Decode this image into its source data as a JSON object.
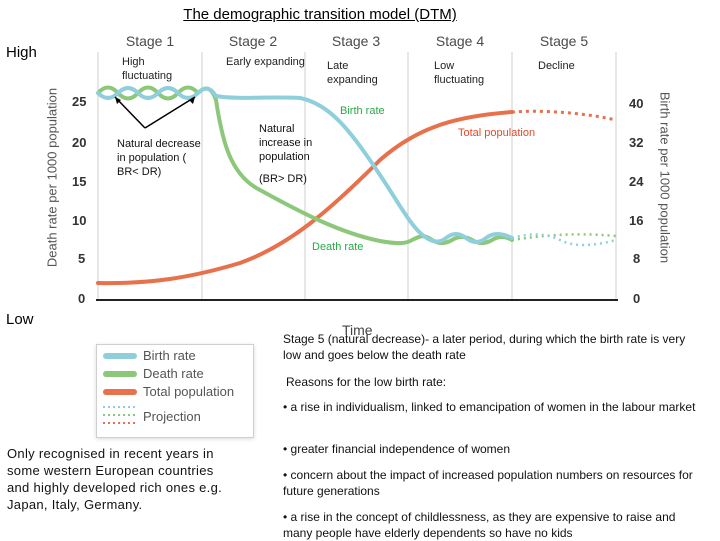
{
  "title": "The demographic transition model (DTM)",
  "side_labels": {
    "high": "High",
    "low": "Low"
  },
  "stages": [
    {
      "name": "Stage 1",
      "desc": "High fluctuating"
    },
    {
      "name": "Stage 2",
      "desc": "Early expanding"
    },
    {
      "name": "Stage 3",
      "desc": "Late expanding"
    },
    {
      "name": "Stage 4",
      "desc": "Low fluctuating"
    },
    {
      "name": "Stage 5",
      "desc": "Decline"
    }
  ],
  "annotations": {
    "natural_decrease": "Natural decrease in population ( BR< DR)",
    "natural_increase": "Natural increase in population",
    "br_dr": "(BR> DR)",
    "birth_rate": "Birth rate",
    "total_population": "Total population",
    "death_rate": "Death rate"
  },
  "axes": {
    "left_title": "Death rate per 1000 population",
    "right_title": "Birth rate per 1000 population",
    "x_title": "Time",
    "left_ticks": [
      "25",
      "20",
      "15",
      "10",
      "5",
      "0"
    ],
    "right_ticks": [
      "40",
      "32",
      "24",
      "16",
      "8",
      "0"
    ]
  },
  "legend": {
    "items": [
      "Birth rate",
      "Death rate",
      "Total population",
      "Projection"
    ],
    "colors": {
      "birth": "#8fcfdc",
      "death": "#8cc77a",
      "population": "#e8704a"
    }
  },
  "stage5_text": "Stage 5 (natural decrease)- a later period, during which the birth rate is very low and goes below the death rate",
  "reasons_heading": "Reasons for the low birth rate:",
  "reasons": [
    "• a rise in individualism, linked to emancipation of women in the labour market",
    "• greater financial independence of women",
    "• concern about the impact of increased population numbers on resources for future generations",
    "• a rise in the concept of childlessness, as they are expensive to raise and many people have elderly dependents so have no kids"
  ],
  "left_note": "Only recognised in recent years in some western European countries and highly developed rich ones e.g. Japan, Italy, Germany."
}
